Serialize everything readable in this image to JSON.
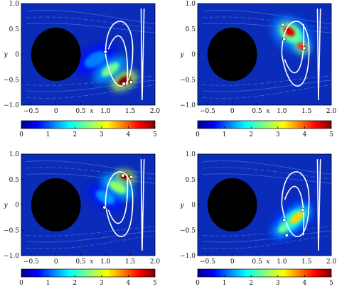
{
  "chart_data": [
    {
      "type": "heatmap",
      "xlabel": "x",
      "ylabel": "y",
      "xlim": [
        -0.7,
        2.0
      ],
      "ylim": [
        -1.0,
        1.0
      ],
      "xticks": [
        "−0.5",
        "0",
        "0.5",
        "1.0",
        "1.5",
        "2.0"
      ],
      "xtick_values": [
        -0.5,
        0,
        0.5,
        1.0,
        1.5,
        2.0
      ],
      "yticks": [
        "−1.0",
        "−0.5",
        "0",
        "0.5",
        "1.0"
      ],
      "ytick_values": [
        -1.0,
        -0.5,
        0,
        0.5,
        1.0
      ],
      "colorbar": {
        "ticks": [
          "0",
          "1",
          "2",
          "3",
          "4",
          "5"
        ],
        "range": [
          0,
          5
        ]
      },
      "cylinder": {
        "cx": 0,
        "cy": 0,
        "r": 0.5
      },
      "markers": [
        [
          1.37,
          -0.58
        ],
        [
          1.52,
          -0.55
        ],
        [
          1.0,
          0.05
        ]
      ],
      "hotspots": [
        {
          "x": 1.38,
          "y": -0.52,
          "value": 5.0,
          "rx": 0.22,
          "ry": 0.1,
          "angle": -30
        },
        {
          "x": 1.1,
          "y": -0.3,
          "value": 2.4,
          "rx": 0.3,
          "ry": 0.12,
          "angle": -35
        },
        {
          "x": 0.8,
          "y": -0.1,
          "value": 1.2,
          "rx": 0.35,
          "ry": 0.16,
          "angle": -30
        }
      ]
    },
    {
      "type": "heatmap",
      "xlabel": "x",
      "ylabel": "y",
      "xlim": [
        -0.7,
        2.0
      ],
      "ylim": [
        -1.0,
        1.0
      ],
      "xticks": [
        "−0.5",
        "0",
        "0.5",
        "1.0",
        "1.5",
        "2.0"
      ],
      "xtick_values": [
        -0.5,
        0,
        0.5,
        1.0,
        1.5,
        2.0
      ],
      "yticks": [
        "−1.0",
        "−0.5",
        "0",
        "0.5",
        "1.0"
      ],
      "ytick_values": [
        -1.0,
        -0.5,
        0,
        0.5,
        1.0
      ],
      "colorbar": {
        "ticks": [
          "0",
          "1",
          "2",
          "3",
          "4",
          "5"
        ],
        "range": [
          0,
          5
        ]
      },
      "cylinder": {
        "cx": 0,
        "cy": 0,
        "r": 0.5
      },
      "markers": [
        [
          1.02,
          0.58
        ],
        [
          1.05,
          0.3
        ],
        [
          1.45,
          0.12
        ]
      ],
      "hotspots": [
        {
          "x": 1.15,
          "y": 0.45,
          "value": 4.6,
          "rx": 0.18,
          "ry": 0.1,
          "angle": 35
        },
        {
          "x": 1.4,
          "y": 0.15,
          "value": 4.2,
          "rx": 0.14,
          "ry": 0.08,
          "angle": 40
        },
        {
          "x": 1.2,
          "y": 0.4,
          "value": 2.0,
          "rx": 0.35,
          "ry": 0.2,
          "angle": 35
        }
      ]
    },
    {
      "type": "heatmap",
      "xlabel": "x",
      "ylabel": "y",
      "xlim": [
        -0.7,
        2.0
      ],
      "ylim": [
        -1.0,
        1.0
      ],
      "xticks": [
        "−0.5",
        "0",
        "0.5",
        "1.0",
        "1.5",
        "2.0"
      ],
      "xtick_values": [
        -0.5,
        0,
        0.5,
        1.0,
        1.5,
        2.0
      ],
      "yticks": [
        "−1.0",
        "−0.5",
        "0",
        "0.5",
        "1.0"
      ],
      "ytick_values": [
        -1.0,
        -0.5,
        0,
        0.5,
        1.0
      ],
      "colorbar": {
        "ticks": [
          "0",
          "1",
          "2",
          "3",
          "4",
          "5"
        ],
        "range": [
          0,
          5
        ]
      },
      "cylinder": {
        "cx": 0,
        "cy": 0,
        "r": 0.5
      },
      "markers": [
        [
          1.35,
          0.58
        ],
        [
          1.52,
          0.55
        ],
        [
          0.98,
          -0.05
        ]
      ],
      "hotspots": [
        {
          "x": 1.4,
          "y": 0.55,
          "value": 5.0,
          "rx": 0.16,
          "ry": 0.08,
          "angle": 15
        },
        {
          "x": 1.25,
          "y": 0.35,
          "value": 2.6,
          "rx": 0.28,
          "ry": 0.12,
          "angle": 30
        },
        {
          "x": 1.0,
          "y": 0.15,
          "value": 1.3,
          "rx": 0.3,
          "ry": 0.14,
          "angle": 30
        }
      ]
    },
    {
      "type": "heatmap",
      "xlabel": "x",
      "ylabel": "y",
      "xlim": [
        -0.7,
        2.0
      ],
      "ylim": [
        -1.0,
        1.0
      ],
      "xticks": [
        "−0.5",
        "0",
        "0.5",
        "1.0",
        "1.5",
        "2.0"
      ],
      "xtick_values": [
        -0.5,
        0,
        0.5,
        1.0,
        1.5,
        2.0
      ],
      "yticks": [
        "−1.0",
        "−0.5",
        "0",
        "0.5",
        "1.0"
      ],
      "ytick_values": [
        -1.0,
        -0.5,
        0,
        0.5,
        1.0
      ],
      "colorbar": {
        "ticks": [
          "0",
          "1",
          "2",
          "3",
          "4",
          "5"
        ],
        "range": [
          0,
          5
        ]
      },
      "cylinder": {
        "cx": 0,
        "cy": 0,
        "r": 0.5
      },
      "markers": [
        [
          1.05,
          -0.3
        ],
        [
          1.1,
          -0.6
        ],
        [
          1.42,
          -0.1
        ]
      ],
      "hotspots": [
        {
          "x": 1.3,
          "y": -0.25,
          "value": 3.4,
          "rx": 0.25,
          "ry": 0.1,
          "angle": -40
        },
        {
          "x": 1.05,
          "y": -0.45,
          "value": 2.6,
          "rx": 0.2,
          "ry": 0.09,
          "angle": -35
        },
        {
          "x": 1.2,
          "y": -0.3,
          "value": 1.5,
          "rx": 0.4,
          "ry": 0.18,
          "angle": -40
        }
      ]
    }
  ]
}
